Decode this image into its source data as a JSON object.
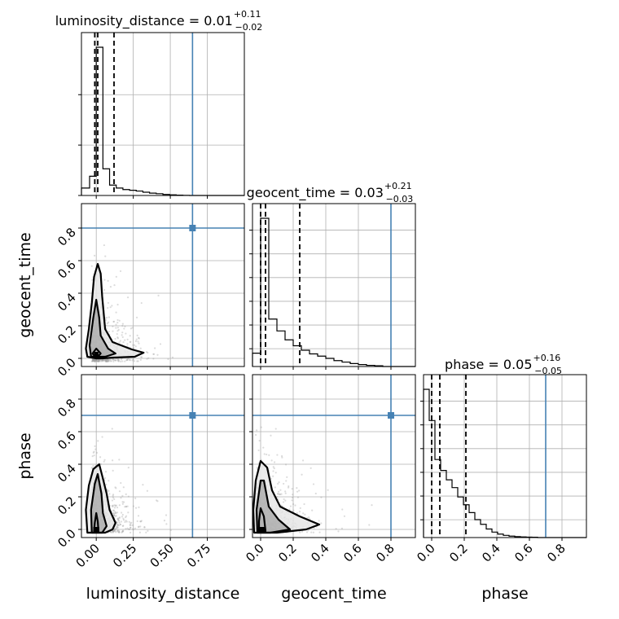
{
  "chart_data": {
    "type": "corner",
    "parameters": [
      "luminosity_distance",
      "geocent_time",
      "phase"
    ],
    "truths": [
      0.65,
      0.8,
      0.7
    ],
    "titles": [
      {
        "param": "luminosity_distance",
        "median": "0.01",
        "plus": "+0.11",
        "minus": "−0.02"
      },
      {
        "param": "geocent_time",
        "median": "0.03",
        "plus": "+0.21",
        "minus": "−0.03"
      },
      {
        "param": "phase",
        "median": "0.05",
        "plus": "+0.16",
        "minus": "−0.05"
      }
    ],
    "quantile_lines": [
      [
        -0.01,
        0.01,
        0.12
      ],
      [
        0.0,
        0.03,
        0.24
      ],
      [
        0.0,
        0.05,
        0.21
      ]
    ],
    "axis_ranges": [
      [
        -0.1,
        1.0
      ],
      [
        -0.05,
        0.95
      ],
      [
        -0.05,
        0.95
      ]
    ],
    "tick_labels": {
      "luminosity_distance": [
        "0.00",
        "0.25",
        "0.50",
        "0.75"
      ],
      "geocent_time": [
        "0.0",
        "0.2",
        "0.4",
        "0.6",
        "0.8"
      ],
      "phase": [
        "0.0",
        "0.2",
        "0.4",
        "0.6",
        "0.8"
      ]
    },
    "marginals": {
      "luminosity_distance": {
        "bin_edges": [
          -0.1,
          -0.045,
          0.0,
          0.045,
          0.09,
          0.135,
          0.18,
          0.225,
          0.27,
          0.315,
          0.36,
          0.405,
          0.45,
          0.495,
          0.54,
          0.585,
          0.63,
          0.675,
          0.72,
          0.765,
          0.81,
          0.855,
          0.9,
          0.945,
          1.0
        ],
        "counts": [
          0.05,
          0.13,
          1.0,
          0.18,
          0.07,
          0.05,
          0.04,
          0.035,
          0.03,
          0.022,
          0.016,
          0.012,
          0.007,
          0.004,
          0.002,
          0.001,
          0.0,
          0.0,
          0.0,
          0.0,
          0.0,
          0.0,
          0.0,
          0.0
        ]
      },
      "geocent_time": {
        "bin_edges": [
          -0.05,
          0.0,
          0.05,
          0.1,
          0.15,
          0.2,
          0.25,
          0.3,
          0.35,
          0.4,
          0.45,
          0.5,
          0.55,
          0.6,
          0.65,
          0.7,
          0.75,
          0.8,
          0.85,
          0.9,
          0.95
        ],
        "counts": [
          0.09,
          1.0,
          0.32,
          0.24,
          0.18,
          0.14,
          0.11,
          0.085,
          0.07,
          0.055,
          0.04,
          0.03,
          0.02,
          0.013,
          0.008,
          0.005,
          0.0,
          0.0,
          0.0,
          0.0
        ]
      },
      "phase": {
        "bin_edges": [
          -0.05,
          -0.015,
          0.02,
          0.055,
          0.09,
          0.125,
          0.16,
          0.195,
          0.23,
          0.265,
          0.3,
          0.335,
          0.37,
          0.405,
          0.44,
          0.475,
          0.51,
          0.545,
          0.58,
          0.615,
          0.65,
          0.95
        ],
        "counts": [
          0.95,
          0.75,
          0.5,
          0.43,
          0.37,
          0.32,
          0.26,
          0.21,
          0.16,
          0.115,
          0.085,
          0.055,
          0.035,
          0.022,
          0.014,
          0.009,
          0.006,
          0.004,
          0.003,
          0.002,
          0.0
        ]
      }
    },
    "contours": {
      "geocent_time_vs_luminosity_distance": {
        "outer": [
          [
            0.0,
            0.0
          ],
          [
            -0.06,
            0.01
          ],
          [
            -0.07,
            0.06
          ],
          [
            -0.05,
            0.18
          ],
          [
            -0.03,
            0.34
          ],
          [
            -0.015,
            0.5
          ],
          [
            0.01,
            0.58
          ],
          [
            0.03,
            0.52
          ],
          [
            0.04,
            0.38
          ],
          [
            0.06,
            0.18
          ],
          [
            0.11,
            0.1
          ],
          [
            0.24,
            0.055
          ],
          [
            0.32,
            0.035
          ],
          [
            0.26,
            0.01
          ],
          [
            0.12,
            0.005
          ],
          [
            0.04,
            0.0
          ]
        ],
        "middle": [
          [
            -0.035,
            0.01
          ],
          [
            -0.045,
            0.08
          ],
          [
            -0.02,
            0.25
          ],
          [
            0.0,
            0.36
          ],
          [
            0.02,
            0.25
          ],
          [
            0.03,
            0.14
          ],
          [
            0.08,
            0.06
          ],
          [
            0.13,
            0.03
          ],
          [
            0.06,
            0.01
          ]
        ],
        "inner": [
          [
            -0.025,
            0.03
          ],
          [
            0.0,
            0.06
          ],
          [
            0.03,
            0.03
          ],
          [
            0.0,
            0.0
          ]
        ],
        "core": [
          [
            -0.015,
            0.015
          ],
          [
            0.015,
            0.015
          ],
          [
            0.015,
            0.04
          ],
          [
            -0.015,
            0.04
          ]
        ]
      },
      "phase_vs_luminosity_distance": {
        "outer": [
          [
            -0.06,
            -0.02
          ],
          [
            -0.07,
            0.12
          ],
          [
            -0.05,
            0.27
          ],
          [
            -0.02,
            0.37
          ],
          [
            0.02,
            0.4
          ],
          [
            0.04,
            0.33
          ],
          [
            0.07,
            0.22
          ],
          [
            0.09,
            0.12
          ],
          [
            0.13,
            0.04
          ],
          [
            0.11,
            0.0
          ],
          [
            0.06,
            -0.02
          ]
        ],
        "middle": [
          [
            -0.03,
            -0.02
          ],
          [
            -0.035,
            0.12
          ],
          [
            -0.01,
            0.28
          ],
          [
            0.01,
            0.34
          ],
          [
            0.035,
            0.22
          ],
          [
            0.045,
            0.1
          ],
          [
            0.07,
            0.02
          ],
          [
            0.04,
            -0.02
          ]
        ],
        "inner": [
          [
            -0.015,
            -0.01
          ],
          [
            -0.01,
            0.04
          ],
          [
            0.0,
            0.1
          ],
          [
            0.01,
            0.05
          ],
          [
            0.015,
            -0.01
          ]
        ],
        "core": [
          [
            -0.02,
            -0.015
          ],
          [
            0.02,
            -0.015
          ],
          [
            0.02,
            0.015
          ],
          [
            -0.02,
            0.015
          ]
        ]
      },
      "phase_vs_geocent_time": {
        "outer": [
          [
            -0.04,
            -0.02
          ],
          [
            -0.045,
            0.12
          ],
          [
            -0.03,
            0.3
          ],
          [
            0.0,
            0.42
          ],
          [
            0.04,
            0.38
          ],
          [
            0.07,
            0.24
          ],
          [
            0.12,
            0.14
          ],
          [
            0.24,
            0.08
          ],
          [
            0.36,
            0.03
          ],
          [
            0.28,
            0.0
          ],
          [
            0.1,
            -0.02
          ]
        ],
        "middle": [
          [
            -0.02,
            -0.02
          ],
          [
            -0.025,
            0.12
          ],
          [
            0.0,
            0.3
          ],
          [
            0.02,
            0.3
          ],
          [
            0.05,
            0.14
          ],
          [
            0.11,
            0.06
          ],
          [
            0.18,
            0.0
          ],
          [
            0.06,
            -0.02
          ]
        ],
        "inner": [
          [
            -0.01,
            -0.01
          ],
          [
            -0.01,
            0.05
          ],
          [
            0.0,
            0.13
          ],
          [
            0.02,
            0.08
          ],
          [
            0.03,
            -0.01
          ]
        ],
        "core": [
          [
            -0.015,
            -0.015
          ],
          [
            0.025,
            -0.015
          ],
          [
            0.025,
            0.015
          ],
          [
            -0.015,
            0.015
          ]
        ]
      }
    },
    "grid": true
  }
}
